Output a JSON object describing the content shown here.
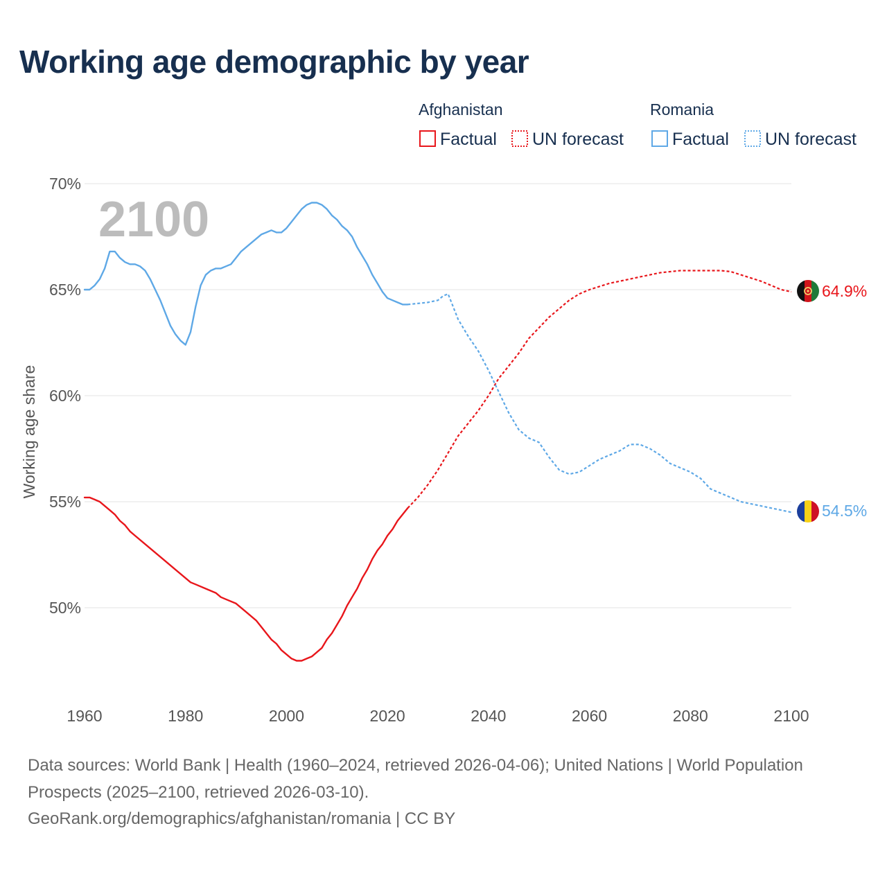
{
  "title": "Working age demographic by year",
  "legend": [
    {
      "country": "Afghanistan",
      "factual_label": "Factual",
      "forecast_label": "UN forecast",
      "color": "#e8161b"
    },
    {
      "country": "Romania",
      "factual_label": "Factual",
      "forecast_label": "UN forecast",
      "color": "#5ea8e6"
    }
  ],
  "year_watermark": "2100",
  "footer": {
    "sources": "Data sources: World Bank | Health (1960–2024, retrieved 2026-04-06); United Nations | World Population Prospects (2025–2100, retrieved 2026-03-10).",
    "credit": "GeoRank.org/demographics/afghanistan/romania | CC BY"
  },
  "chart_data": {
    "type": "line",
    "title": "Working age demographic by year",
    "xlabel": "",
    "ylabel": "Working age share",
    "xlim": [
      1960,
      2100
    ],
    "ylim": [
      45.8,
      70
    ],
    "x_ticks": [
      1960,
      1980,
      2000,
      2020,
      2040,
      2060,
      2080,
      2100
    ],
    "x_tick_labels": [
      "1960",
      "1980",
      "2000",
      "2020",
      "2040",
      "2060",
      "2080",
      "2100"
    ],
    "y_ticks": [
      50,
      55,
      60,
      65,
      70
    ],
    "y_tick_labels": [
      "50%",
      "55%",
      "60%",
      "65%",
      "70%"
    ],
    "grid": true,
    "series": [
      {
        "name": "Afghanistan",
        "color": "#e8161b",
        "end_label": "64.9%",
        "factual": {
          "x": [
            1960,
            1961,
            1962,
            1963,
            1964,
            1965,
            1966,
            1967,
            1968,
            1969,
            1970,
            1972,
            1974,
            1976,
            1978,
            1980,
            1981,
            1982,
            1984,
            1986,
            1987,
            1988,
            1990,
            1992,
            1994,
            1996,
            1997,
            1998,
            1999,
            2000,
            2001,
            2002,
            2003,
            2004,
            2005,
            2006,
            2007,
            2008,
            2009,
            2010,
            2011,
            2012,
            2013,
            2014,
            2015,
            2016,
            2017,
            2018,
            2019,
            2020,
            2021,
            2022,
            2023,
            2024
          ],
          "y": [
            55.2,
            55.2,
            55.1,
            55.0,
            54.8,
            54.6,
            54.4,
            54.1,
            53.9,
            53.6,
            53.4,
            53.0,
            52.6,
            52.2,
            51.8,
            51.4,
            51.2,
            51.1,
            50.9,
            50.7,
            50.5,
            50.4,
            50.2,
            49.8,
            49.4,
            48.8,
            48.5,
            48.3,
            48.0,
            47.8,
            47.6,
            47.5,
            47.5,
            47.6,
            47.7,
            47.9,
            48.1,
            48.5,
            48.8,
            49.2,
            49.6,
            50.1,
            50.5,
            50.9,
            51.4,
            51.8,
            52.3,
            52.7,
            53.0,
            53.4,
            53.7,
            54.1,
            54.4,
            54.7
          ]
        },
        "forecast": {
          "x": [
            2024,
            2026,
            2028,
            2030,
            2032,
            2034,
            2036,
            2038,
            2040,
            2042,
            2044,
            2046,
            2048,
            2050,
            2052,
            2054,
            2056,
            2058,
            2060,
            2062,
            2064,
            2066,
            2068,
            2070,
            2072,
            2074,
            2076,
            2078,
            2080,
            2082,
            2084,
            2086,
            2088,
            2090,
            2092,
            2094,
            2096,
            2098,
            2100
          ],
          "y": [
            54.7,
            55.2,
            55.8,
            56.5,
            57.3,
            58.1,
            58.7,
            59.3,
            60.0,
            60.8,
            61.4,
            62.0,
            62.7,
            63.2,
            63.7,
            64.1,
            64.5,
            64.8,
            65.0,
            65.15,
            65.3,
            65.4,
            65.5,
            65.6,
            65.7,
            65.8,
            65.85,
            65.9,
            65.9,
            65.9,
            65.9,
            65.9,
            65.85,
            65.7,
            65.55,
            65.4,
            65.2,
            65.0,
            64.9
          ]
        }
      },
      {
        "name": "Romania",
        "color": "#5ea8e6",
        "end_label": "54.5%",
        "factual": {
          "x": [
            1960,
            1961,
            1962,
            1963,
            1964,
            1965,
            1966,
            1967,
            1968,
            1969,
            1970,
            1971,
            1972,
            1973,
            1974,
            1975,
            1976,
            1977,
            1978,
            1979,
            1980,
            1981,
            1982,
            1983,
            1984,
            1985,
            1986,
            1987,
            1988,
            1989,
            1990,
            1991,
            1992,
            1993,
            1994,
            1995,
            1996,
            1997,
            1998,
            1999,
            2000,
            2001,
            2002,
            2003,
            2004,
            2005,
            2006,
            2007,
            2008,
            2009,
            2010,
            2011,
            2012,
            2013,
            2014,
            2015,
            2016,
            2017,
            2018,
            2019,
            2020,
            2021,
            2022,
            2023,
            2024
          ],
          "y": [
            65.0,
            65.0,
            65.2,
            65.5,
            66.0,
            66.8,
            66.8,
            66.5,
            66.3,
            66.2,
            66.2,
            66.1,
            65.9,
            65.5,
            65.0,
            64.5,
            63.9,
            63.3,
            62.9,
            62.6,
            62.4,
            63.0,
            64.2,
            65.2,
            65.7,
            65.9,
            66.0,
            66.0,
            66.1,
            66.2,
            66.5,
            66.8,
            67.0,
            67.2,
            67.4,
            67.6,
            67.7,
            67.8,
            67.7,
            67.7,
            67.9,
            68.2,
            68.5,
            68.8,
            69.0,
            69.1,
            69.1,
            69.0,
            68.8,
            68.5,
            68.3,
            68.0,
            67.8,
            67.5,
            67.0,
            66.6,
            66.2,
            65.7,
            65.3,
            64.9,
            64.6,
            64.5,
            64.4,
            64.3,
            64.3
          ]
        },
        "forecast": {
          "x": [
            2024,
            2026,
            2028,
            2030,
            2031,
            2032,
            2034,
            2036,
            2038,
            2040,
            2042,
            2044,
            2046,
            2048,
            2050,
            2052,
            2054,
            2056,
            2058,
            2060,
            2062,
            2064,
            2066,
            2068,
            2070,
            2072,
            2074,
            2076,
            2078,
            2080,
            2082,
            2084,
            2086,
            2088,
            2090,
            2092,
            2094,
            2096,
            2098,
            2100
          ],
          "y": [
            64.3,
            64.35,
            64.4,
            64.5,
            64.7,
            64.8,
            63.6,
            62.8,
            62.1,
            61.2,
            60.2,
            59.2,
            58.4,
            58.0,
            57.8,
            57.1,
            56.5,
            56.3,
            56.4,
            56.7,
            57.0,
            57.2,
            57.4,
            57.7,
            57.7,
            57.5,
            57.2,
            56.8,
            56.6,
            56.4,
            56.1,
            55.6,
            55.4,
            55.2,
            55.0,
            54.9,
            54.8,
            54.7,
            54.6,
            54.5
          ]
        }
      }
    ]
  }
}
